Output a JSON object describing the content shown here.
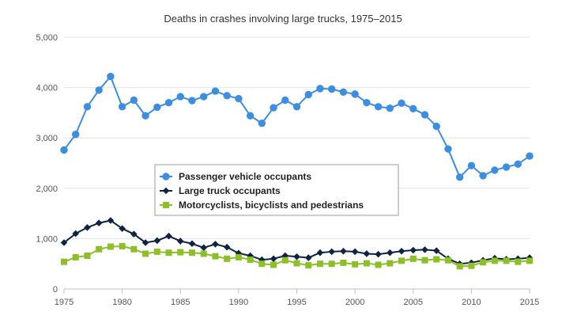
{
  "chart_data": {
    "type": "line",
    "title": "Deaths in crashes involving large trucks, 1975–2015",
    "xlabel": "",
    "ylabel": "",
    "xlim": [
      1975,
      2015
    ],
    "ylim": [
      0,
      5000
    ],
    "x_ticks": [
      "1975",
      "1980",
      "1985",
      "1990",
      "1995",
      "2000",
      "2005",
      "2010",
      "2015"
    ],
    "y_ticks": [
      "0",
      "1,000",
      "2,000",
      "3,000",
      "4,000",
      "5,000"
    ],
    "grid": "horizontal",
    "legend_position": "center-left",
    "x": [
      1975,
      1976,
      1977,
      1978,
      1979,
      1980,
      1981,
      1982,
      1983,
      1984,
      1985,
      1986,
      1987,
      1988,
      1989,
      1990,
      1991,
      1992,
      1993,
      1994,
      1995,
      1996,
      1997,
      1998,
      1999,
      2000,
      2001,
      2002,
      2003,
      2004,
      2005,
      2006,
      2007,
      2008,
      2009,
      2010,
      2011,
      2012,
      2013,
      2014,
      2015
    ],
    "series": [
      {
        "name": "Passenger vehicle occupants",
        "color": "#3c8ee0",
        "marker": "circle",
        "values": [
          2760,
          3070,
          3620,
          3950,
          4220,
          3620,
          3750,
          3440,
          3610,
          3700,
          3820,
          3740,
          3820,
          3930,
          3840,
          3780,
          3440,
          3290,
          3600,
          3750,
          3620,
          3860,
          3980,
          3970,
          3910,
          3870,
          3700,
          3620,
          3590,
          3690,
          3580,
          3460,
          3230,
          2780,
          2220,
          2450,
          2250,
          2360,
          2420,
          2480,
          2640
        ]
      },
      {
        "name": "Large truck occupants",
        "color": "#0e2442",
        "marker": "diamond",
        "values": [
          920,
          1100,
          1220,
          1310,
          1360,
          1200,
          1090,
          920,
          960,
          1050,
          950,
          900,
          820,
          890,
          830,
          710,
          660,
          580,
          600,
          660,
          640,
          620,
          720,
          740,
          750,
          740,
          700,
          690,
          720,
          750,
          770,
          780,
          760,
          600,
          500,
          520,
          570,
          610,
          590,
          600,
          620
        ]
      },
      {
        "name": "Motorcyclists, bicyclists and pedestrians",
        "color": "#8dbf27",
        "marker": "square",
        "values": [
          540,
          630,
          660,
          790,
          840,
          850,
          790,
          700,
          740,
          720,
          730,
          720,
          700,
          650,
          600,
          630,
          580,
          500,
          480,
          570,
          510,
          470,
          500,
          500,
          520,
          490,
          510,
          480,
          510,
          560,
          600,
          570,
          590,
          570,
          450,
          460,
          530,
          560,
          560,
          540,
          560
        ]
      }
    ]
  }
}
